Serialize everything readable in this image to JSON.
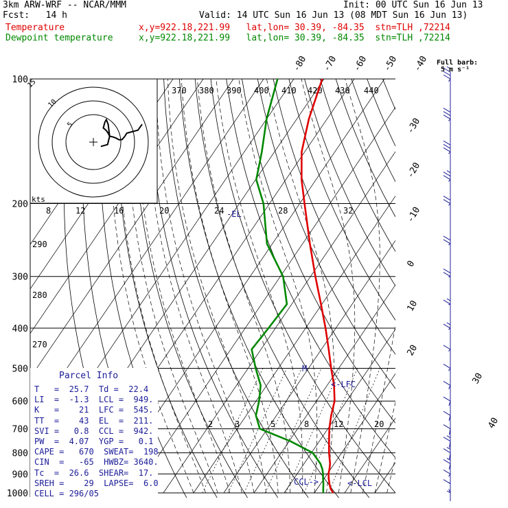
{
  "header": {
    "model": "3km ARW-WRF -- NCAR/MMM",
    "init": "Init: 00 UTC Sun 16 Jun 13",
    "fcst": "Fcst:   14 h",
    "valid": "Valid: 14 UTC Sun 16 Jun 13 (08 MDT Sun 16 Jun 13)",
    "temp_label": "Temperature",
    "dew_label": "Dewpoint temperature",
    "location": "x,y=922.18,221.99   lat,lon= 30.39, -84.35  stn=TLH ,72214",
    "barb_note_line1": "Full barb:",
    "barb_note_line2": "5 m s⁻¹"
  },
  "colors": {
    "temperature": "#e00000",
    "dewpoint": "#008800",
    "parcel_text": "#1c1c99",
    "grid": "#000000"
  },
  "parcel_info": {
    "title": "Parcel Info",
    "rows": [
      "T   =  25.7  Td =  22.4",
      "LI  =  -1.3  LCL =  949.",
      "K   =    21  LFC =  545.",
      "TT  =    43  EL  =  211.",
      "SVI =   0.8  CCL =  942.",
      "PW  =  4.07  YGP =   0.1",
      "CAPE =   670  SWEAT=  198",
      "CIN  =   -65  HWBZ= 3640.",
      "Tc  =  26.6  SHEAR=  17.",
      "SREH =    29  LAPSE=  6.0",
      "CELL = 296/05"
    ]
  },
  "chart_data": {
    "type": "line",
    "title": "",
    "y_axis": {
      "label": "",
      "scale": "log-pressure",
      "range": [
        1000,
        100
      ],
      "ticks": [
        100,
        200,
        300,
        400,
        500,
        600,
        700,
        800,
        900,
        1000
      ]
    },
    "isotherm_labels": [
      "-80",
      "-70",
      "-60",
      "-50",
      "-40",
      "-30",
      "-20",
      "-10",
      "0",
      "10",
      "20",
      "30",
      "40"
    ],
    "theta_e_labels": [
      "370",
      "380",
      "390",
      "400",
      "410",
      "420",
      "430",
      "440"
    ],
    "theta_labels": [
      "290",
      "280",
      "270"
    ],
    "mixing_ratio_labels": [
      "2",
      "3",
      "5",
      "8",
      "12",
      "20"
    ],
    "hodograph": {
      "units_label": "kts",
      "ring_labels": [
        "5",
        "10",
        "15"
      ],
      "axis_labels": [
        "8",
        "12",
        "16",
        "20",
        "24",
        "28",
        "32"
      ]
    },
    "annotations": [
      "-EL",
      "<-LFC",
      "<-LCL",
      "CCL->",
      "M"
    ],
    "series": [
      {
        "name": "Temperature",
        "points": [
          [
            1000,
            26.2
          ],
          [
            975,
            24.3
          ],
          [
            950,
            22.9
          ],
          [
            925,
            21.6
          ],
          [
            900,
            20.4
          ],
          [
            875,
            19.6
          ],
          [
            850,
            18.6
          ],
          [
            800,
            15.8
          ],
          [
            750,
            13.2
          ],
          [
            700,
            10.5
          ],
          [
            650,
            8.1
          ],
          [
            600,
            6.0
          ],
          [
            550,
            2.3
          ],
          [
            500,
            -2.5
          ],
          [
            450,
            -7.6
          ],
          [
            400,
            -13.4
          ],
          [
            350,
            -20.3
          ],
          [
            300,
            -28.4
          ],
          [
            250,
            -37.6
          ],
          [
            200,
            -48.4
          ],
          [
            175,
            -54.8
          ],
          [
            150,
            -61.0
          ],
          [
            125,
            -66.0
          ],
          [
            100,
            -70.6
          ]
        ]
      },
      {
        "name": "Dewpoint temperature",
        "points": [
          [
            1000,
            22.9
          ],
          [
            975,
            21.9
          ],
          [
            950,
            20.9
          ],
          [
            925,
            19.7
          ],
          [
            900,
            18.6
          ],
          [
            875,
            17.2
          ],
          [
            850,
            15.4
          ],
          [
            800,
            10.4
          ],
          [
            750,
            0.4
          ],
          [
            700,
            -12.5
          ],
          [
            650,
            -16.8
          ],
          [
            600,
            -19.0
          ],
          [
            550,
            -22.0
          ],
          [
            500,
            -27.5
          ],
          [
            450,
            -33.1
          ],
          [
            400,
            -32.3
          ],
          [
            350,
            -31.6
          ],
          [
            300,
            -39.1
          ],
          [
            250,
            -51.8
          ],
          [
            200,
            -62.0
          ],
          [
            175,
            -69.8
          ],
          [
            150,
            -74.2
          ],
          [
            125,
            -80.0
          ],
          [
            100,
            -85.4
          ]
        ]
      }
    ],
    "wind_profile": [
      [
        1000,
        300,
        3
      ],
      [
        950,
        280,
        5
      ],
      [
        900,
        250,
        6
      ],
      [
        850,
        220,
        8
      ],
      [
        800,
        210,
        9
      ],
      [
        750,
        210,
        8
      ],
      [
        700,
        215,
        6
      ],
      [
        650,
        225,
        6
      ],
      [
        600,
        230,
        6
      ],
      [
        550,
        240,
        6
      ],
      [
        500,
        250,
        6
      ],
      [
        450,
        255,
        7
      ],
      [
        400,
        260,
        8
      ],
      [
        350,
        265,
        9
      ],
      [
        300,
        265,
        10
      ],
      [
        250,
        260,
        11
      ],
      [
        200,
        255,
        12
      ],
      [
        175,
        255,
        13
      ],
      [
        150,
        255,
        15
      ],
      [
        125,
        255,
        16
      ],
      [
        100,
        250,
        18
      ]
    ]
  }
}
